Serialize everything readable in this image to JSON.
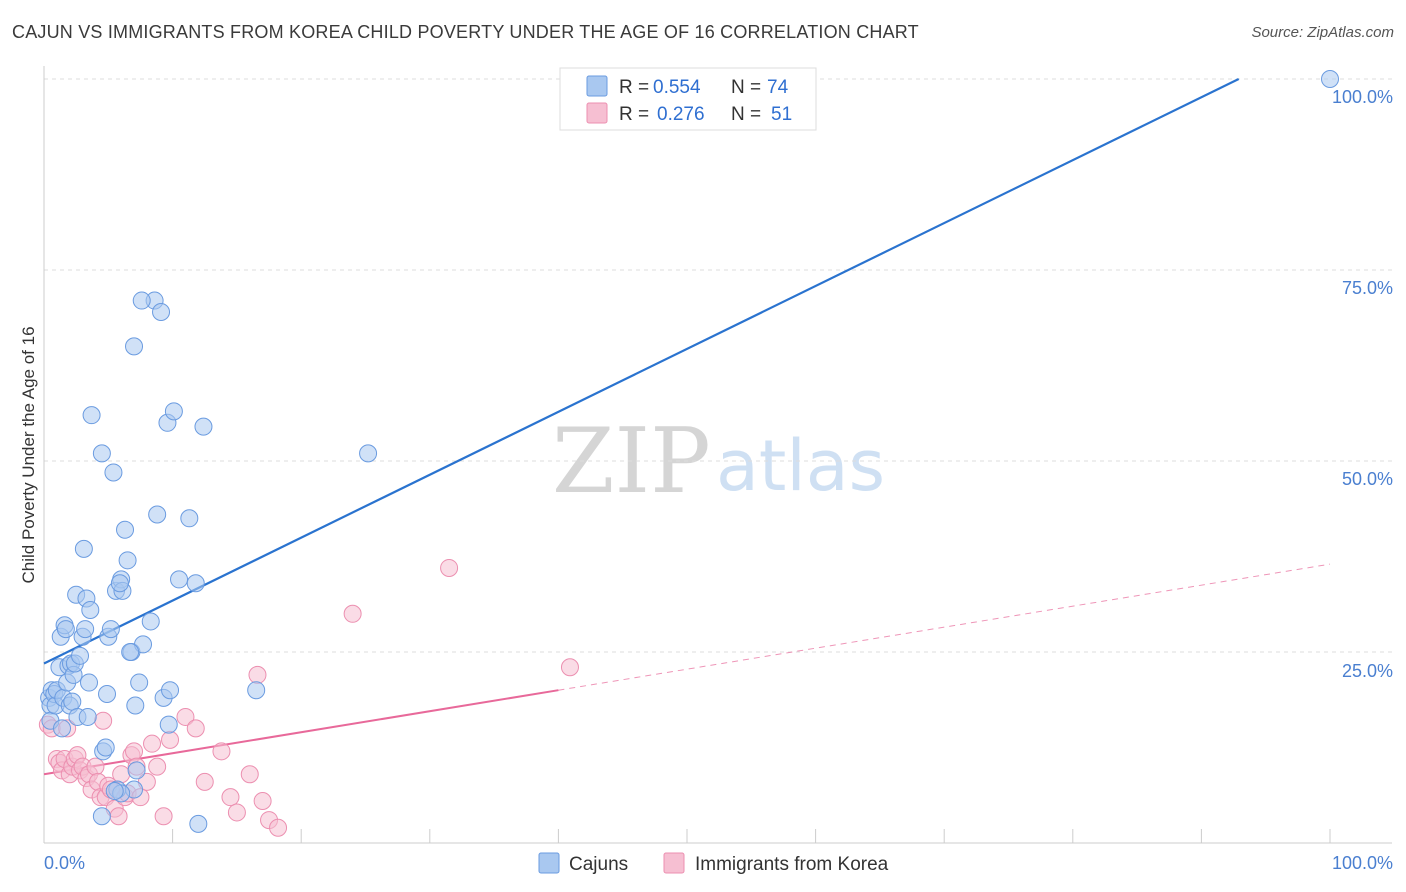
{
  "title": "CAJUN VS IMMIGRANTS FROM KOREA CHILD POVERTY UNDER THE AGE OF 16 CORRELATION CHART",
  "source": "Source: ZipAtlas.com",
  "watermark": {
    "zip": "ZIP",
    "atlas": "atlas"
  },
  "colors": {
    "blue_fill": "#a9c8f0",
    "blue_stroke": "#6a9be0",
    "blue_line": "#2a73cf",
    "pink_fill": "#f6bfd2",
    "pink_stroke": "#ec8fb0",
    "pink_line": "#e8699a",
    "grid": "#dddddd",
    "tick_label": "#4a7fd0"
  },
  "legend": {
    "rows": [
      {
        "r_label": "R =",
        "r_value": "0.554",
        "n_label": "N =",
        "n_value": "74"
      },
      {
        "r_label": "R =",
        "r_value": "0.276",
        "n_label": "N =",
        "n_value": "51"
      }
    ]
  },
  "bottom_legend": [
    "Cajuns",
    "Immigrants from Korea"
  ],
  "chart_data": {
    "type": "scatter",
    "title": "CAJUN VS IMMIGRANTS FROM KOREA CHILD POVERTY UNDER THE AGE OF 16 CORRELATION CHART",
    "xlabel": "",
    "ylabel": "Child Poverty Under the Age of 16",
    "xlim": [
      0,
      100
    ],
    "ylim": [
      0,
      100
    ],
    "x_tick_labels": [
      "0.0%",
      "100.0%"
    ],
    "y_ticks": [
      25,
      50,
      75,
      100
    ],
    "y_tick_labels": [
      "25.0%",
      "50.0%",
      "75.0%",
      "100.0%"
    ],
    "grid": true,
    "series": [
      {
        "name": "Cajuns",
        "R": 0.554,
        "N": 74,
        "trend": {
          "x0": 0,
          "y0": 23.5,
          "x1": 92.9,
          "y1": 100.0
        },
        "points": [
          [
            0.4,
            19
          ],
          [
            0.5,
            18
          ],
          [
            0.5,
            16
          ],
          [
            0.6,
            20
          ],
          [
            0.8,
            19.5
          ],
          [
            0.9,
            18
          ],
          [
            1.0,
            20
          ],
          [
            1.2,
            23
          ],
          [
            1.3,
            27
          ],
          [
            1.4,
            15
          ],
          [
            1.5,
            19
          ],
          [
            1.6,
            28.5
          ],
          [
            1.7,
            28
          ],
          [
            1.8,
            21
          ],
          [
            1.9,
            23.2
          ],
          [
            2.0,
            18
          ],
          [
            2.1,
            23.5
          ],
          [
            2.2,
            18.5
          ],
          [
            2.3,
            22
          ],
          [
            2.4,
            23.5
          ],
          [
            2.5,
            32.5
          ],
          [
            2.6,
            16.5
          ],
          [
            2.8,
            24.5
          ],
          [
            3.0,
            27
          ],
          [
            3.1,
            38.5
          ],
          [
            3.2,
            28
          ],
          [
            3.3,
            32
          ],
          [
            3.4,
            16.5
          ],
          [
            3.5,
            21
          ],
          [
            3.6,
            30.5
          ],
          [
            3.7,
            56
          ],
          [
            4.5,
            51
          ],
          [
            4.6,
            12
          ],
          [
            4.8,
            12.5
          ],
          [
            4.9,
            19.5
          ],
          [
            5.0,
            27
          ],
          [
            5.2,
            28
          ],
          [
            5.4,
            48.5
          ],
          [
            5.6,
            33
          ],
          [
            5.7,
            7
          ],
          [
            6.0,
            34.5
          ],
          [
            6.1,
            33
          ],
          [
            6.3,
            41
          ],
          [
            6.5,
            37
          ],
          [
            6.8,
            25
          ],
          [
            7.0,
            65
          ],
          [
            7.1,
            18
          ],
          [
            7.2,
            9.5
          ],
          [
            7.4,
            21
          ],
          [
            7.7,
            26
          ],
          [
            8.3,
            29
          ],
          [
            8.6,
            71
          ],
          [
            8.8,
            43
          ],
          [
            9.3,
            19
          ],
          [
            9.6,
            55
          ],
          [
            9.8,
            20
          ],
          [
            10.1,
            56.5
          ],
          [
            10.5,
            34.5
          ],
          [
            11.3,
            42.5
          ],
          [
            11.8,
            34
          ],
          [
            12.4,
            54.5
          ],
          [
            16.5,
            20
          ],
          [
            25.2,
            51
          ],
          [
            7.0,
            7
          ],
          [
            6.0,
            6.5
          ],
          [
            5.5,
            6.8
          ],
          [
            4.5,
            3.5
          ],
          [
            12.0,
            2.5
          ],
          [
            7.6,
            71
          ],
          [
            9.1,
            69.5
          ],
          [
            5.9,
            34
          ],
          [
            6.7,
            25
          ],
          [
            9.7,
            15.5
          ],
          [
            100,
            100
          ]
        ]
      },
      {
        "name": "Immigrants from Korea",
        "R": 0.276,
        "N": 51,
        "trend": {
          "x0": 0,
          "y0": 9.0,
          "x1": 40.0,
          "y1": 20.0
        },
        "trend_dashed": {
          "x0": 40.0,
          "y0": 20.0,
          "x1": 100,
          "y1": 36.5
        },
        "points": [
          [
            0.3,
            15.5
          ],
          [
            0.6,
            15
          ],
          [
            1.0,
            11
          ],
          [
            1.2,
            10.5
          ],
          [
            1.4,
            9.5
          ],
          [
            1.6,
            11
          ],
          [
            1.8,
            15
          ],
          [
            2.0,
            9
          ],
          [
            2.2,
            10
          ],
          [
            2.4,
            11
          ],
          [
            2.6,
            11.5
          ],
          [
            2.8,
            9.5
          ],
          [
            3.0,
            10
          ],
          [
            3.3,
            8.5
          ],
          [
            3.5,
            9
          ],
          [
            3.7,
            7
          ],
          [
            4.0,
            10
          ],
          [
            4.2,
            8
          ],
          [
            4.4,
            6
          ],
          [
            4.6,
            16
          ],
          [
            4.8,
            6
          ],
          [
            5.0,
            7.5
          ],
          [
            5.2,
            7
          ],
          [
            5.5,
            4.5
          ],
          [
            5.8,
            3.5
          ],
          [
            6.0,
            9
          ],
          [
            6.3,
            6
          ],
          [
            6.5,
            6.5
          ],
          [
            6.8,
            11.5
          ],
          [
            7.0,
            12
          ],
          [
            7.2,
            10
          ],
          [
            7.5,
            6
          ],
          [
            8.0,
            8
          ],
          [
            8.4,
            13
          ],
          [
            8.8,
            10
          ],
          [
            9.3,
            3.5
          ],
          [
            9.8,
            13.5
          ],
          [
            11.0,
            16.5
          ],
          [
            11.8,
            15
          ],
          [
            12.5,
            8
          ],
          [
            13.8,
            12
          ],
          [
            14.5,
            6
          ],
          [
            15.0,
            4
          ],
          [
            16.0,
            9
          ],
          [
            16.6,
            22
          ],
          [
            17.0,
            5.5
          ],
          [
            17.5,
            3
          ],
          [
            18.2,
            2
          ],
          [
            24.0,
            30
          ],
          [
            31.5,
            36
          ],
          [
            40.9,
            23
          ]
        ]
      }
    ]
  }
}
